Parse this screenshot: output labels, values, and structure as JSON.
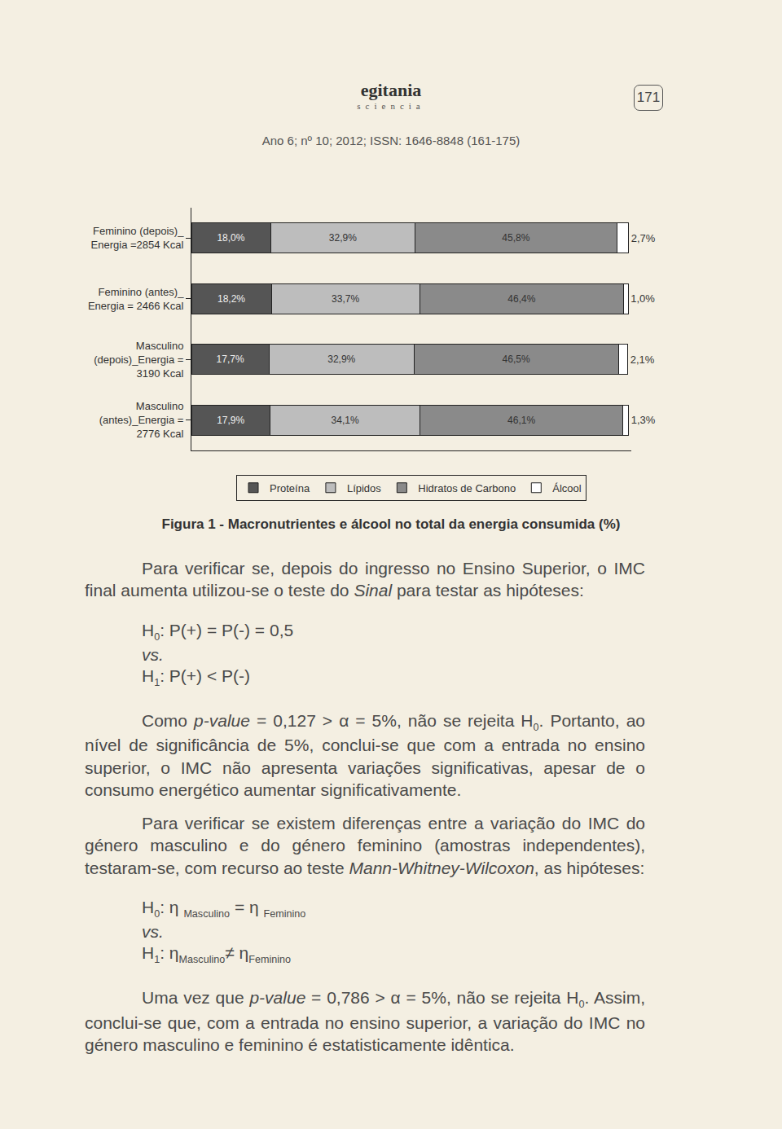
{
  "header": {
    "logo": "egitania",
    "logo_subtitle": "sciencia",
    "page_number": "171",
    "journal": "Ano 6; nº 10; 2012; ISSN: 1646-8848 (161-175)"
  },
  "chart_data": {
    "type": "bar",
    "title": "Figura 1 - Macronutrientes e álcool no total da energia consumida (%)",
    "orientation": "horizontal",
    "stacked": true,
    "data_labels": true,
    "tick_labels": "y",
    "legend": "bottom",
    "xlim": [
      0,
      100
    ],
    "categories": [
      "Feminino (depois)_ Energia =2854 Kcal",
      "Feminino (antes)_ Energia = 2466 Kcal",
      "Masculino (depois)_Energia = 3190 Kcal",
      "Masculino (antes)_Energia = 2776 Kcal"
    ],
    "series": [
      {
        "name": "Proteína",
        "color": "#555555",
        "values": [
          18.0,
          18.2,
          17.7,
          17.9
        ],
        "value_labels": [
          "18,0%",
          "18,2%",
          "17,7%",
          "17,9%"
        ]
      },
      {
        "name": "Lípidos",
        "color": "#bdbdbd",
        "values": [
          32.9,
          33.7,
          32.9,
          34.1
        ],
        "value_labels": [
          "32,9%",
          "33,7%",
          "32,9%",
          "34,1%"
        ]
      },
      {
        "name": "Hidratos de Carbono",
        "color": "#8a8a8a",
        "values": [
          45.8,
          46.4,
          46.5,
          46.1
        ],
        "value_labels": [
          "45,8%",
          "46,4%",
          "46,5%",
          "46,1%"
        ]
      },
      {
        "name": "Álcool",
        "color": "#ffffff",
        "values": [
          2.7,
          1.0,
          2.1,
          1.3
        ],
        "value_labels": [
          "2,7%",
          "1,0%",
          "2,1%",
          "1,3%"
        ]
      }
    ]
  },
  "body": [
    {
      "kind": "paragraph",
      "runs": [
        {
          "text": "Para verificar se, depois do ingresso no Ensino Superior, o IMC final aumenta utilizou-se o teste do "
        },
        {
          "text": "Sinal",
          "style": "italic"
        },
        {
          "text": " para testar as hipóteses:"
        }
      ]
    },
    {
      "kind": "hypotheses",
      "lines": [
        [
          {
            "text": "H"
          },
          {
            "text": "0",
            "style": "sub"
          },
          {
            "text": ": P(+) = P(-) = 0,5"
          }
        ],
        [
          {
            "text": "vs.",
            "style": "italic"
          }
        ],
        [
          {
            "text": "H"
          },
          {
            "text": "1",
            "style": "sub"
          },
          {
            "text": ": P(+) < P(-)"
          }
        ]
      ]
    },
    {
      "kind": "paragraph",
      "runs": [
        {
          "text": "Como "
        },
        {
          "text": "p-value",
          "style": "italic"
        },
        {
          "text": " = 0,127 > α = 5%, não se rejeita H"
        },
        {
          "text": "0",
          "style": "sub"
        },
        {
          "text": ". Portanto, ao nível de significância de 5%, conclui-se que com a entrada no ensino superior, o IMC não apresenta variações significativas, apesar de o consumo energético aumentar significativamente."
        }
      ]
    },
    {
      "kind": "paragraph",
      "runs": [
        {
          "text": "Para verificar se existem diferenças entre a variação do IMC do género masculino e do género feminino (amostras independentes), testaram-se, com recurso ao teste "
        },
        {
          "text": "Mann-Whitney-Wilcoxon",
          "style": "italic"
        },
        {
          "text": ", as hipóteses:"
        }
      ]
    },
    {
      "kind": "hypotheses",
      "lines": [
        [
          {
            "text": "H"
          },
          {
            "text": "0",
            "style": "sub"
          },
          {
            "text": ": η "
          },
          {
            "text": "Masculino",
            "style": "sub"
          },
          {
            "text": " = η "
          },
          {
            "text": "Feminino",
            "style": "sub"
          }
        ],
        [
          {
            "text": "vs.",
            "style": "italic"
          }
        ],
        [
          {
            "text": "H"
          },
          {
            "text": "1",
            "style": "sub"
          },
          {
            "text": ": η"
          },
          {
            "text": "Masculino",
            "style": "sub"
          },
          {
            "text": "≠ η"
          },
          {
            "text": "Feminino",
            "style": "sub"
          }
        ]
      ]
    },
    {
      "kind": "paragraph",
      "runs": [
        {
          "text": "Uma vez que "
        },
        {
          "text": "p-value",
          "style": "italic"
        },
        {
          "text": " = 0,786 > α = 5%, não se rejeita H"
        },
        {
          "text": "0",
          "style": "sub"
        },
        {
          "text": ". Assim, conclui-se que, com a entrada no ensino superior, a variação do IMC no género masculino e feminino é estatisticamente idêntica."
        }
      ]
    }
  ]
}
